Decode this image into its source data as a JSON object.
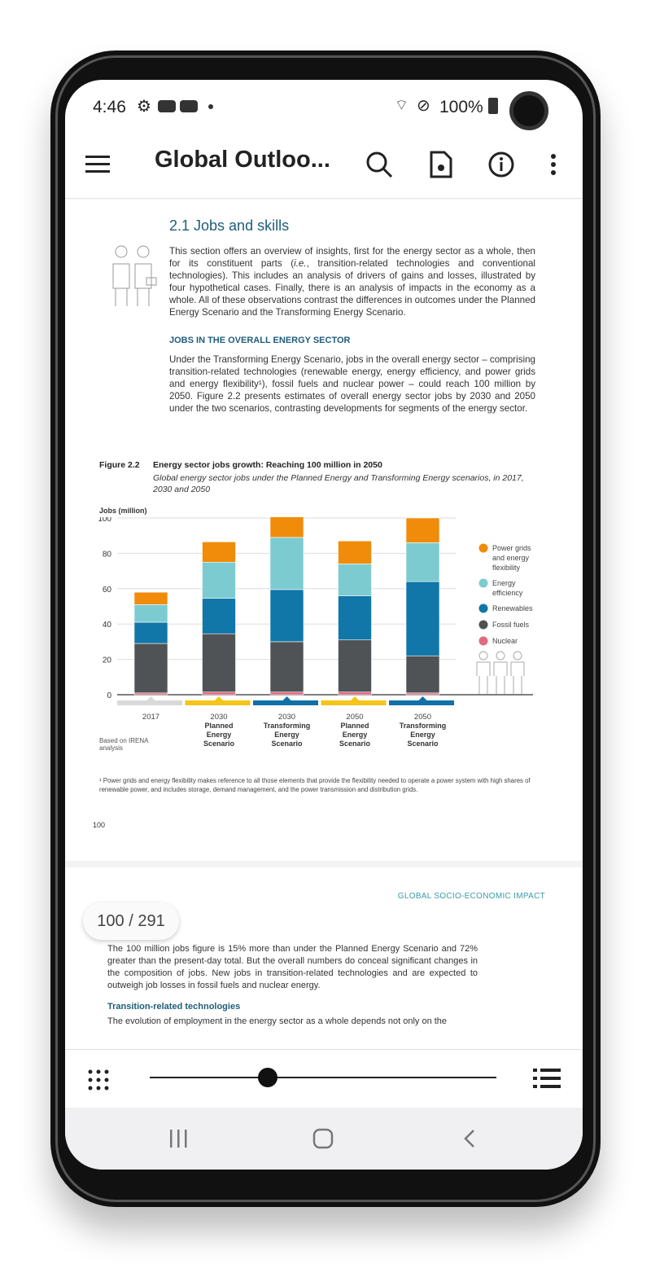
{
  "status_bar": {
    "time": "4:46",
    "battery": "100%",
    "icons": [
      "gear-icon",
      "youtube-icon",
      "youtube-icon",
      "dot-icon",
      "wifi-icon",
      "no-disturb-icon",
      "battery-icon"
    ]
  },
  "app_bar": {
    "title": "Global Outloo...",
    "icons": [
      "menu-icon",
      "search-icon",
      "document-settings-icon",
      "info-icon",
      "more-vert-icon"
    ]
  },
  "page1": {
    "section_title": "2.1  Jobs and skills",
    "intro_parts": [
      "This section offers an overview of insights, first for the energy sector as a whole, then for its constituent parts (",
      "i.e.",
      ", transition-related technologies and conventional technologies). This includes an analysis of drivers of gains and losses, illustrated by four hypothetical cases. Finally, there is an analysis of impacts in the economy as a whole. All of these observations  contrast the differences in outcomes under the Planned Energy Scenario and the Transforming Energy Scenario."
    ],
    "subheading": "JOBS IN THE OVERALL ENERGY SECTOR",
    "para2": "Under the Transforming Energy Scenario, jobs in the overall energy sector – comprising transition-related technologies (renewable energy, energy efficiency, and power grids and energy flexibility¹), fossil fuels and nuclear power – could reach 100 million by 2050. Figure 2.2 presents estimates of overall energy sector jobs by 2030 and 2050 under the two scenarios, contrasting developments for segments of the energy sector.",
    "figure_label": "Figure 2.2",
    "footnote": "¹ Power grids and energy flexibility makes reference to all those elements that provide the flexibility needed to operate a power system with high shares of renewable power, and includes storage, demand management, and the power transmission and distribution grids.",
    "page_number": "100"
  },
  "chart_data": {
    "type": "bar",
    "stacked": true,
    "title": "Energy sector jobs growth: Reaching 100 million in 2050",
    "subtitle": "Global energy sector jobs under the Planned Energy and Transforming Energy scenarios, in 2017, 2030 and 2050",
    "ylabel": "Jobs (million)",
    "ylim": [
      0,
      100
    ],
    "yticks": [
      0,
      20,
      40,
      60,
      80,
      100
    ],
    "grid": true,
    "legend": "right",
    "source": "Based on IRENA analysis",
    "categories": [
      {
        "year": "2017",
        "scenario": "",
        "marker_color": "#d9d9d9"
      },
      {
        "year": "2030",
        "scenario": "Planned Energy Scenario",
        "marker_color": "#f5c518"
      },
      {
        "year": "2030",
        "scenario": "Transforming Energy Scenario",
        "marker_color": "#1170a6"
      },
      {
        "year": "2050",
        "scenario": "Planned Energy Scenario",
        "marker_color": "#f5c518"
      },
      {
        "year": "2050",
        "scenario": "Transforming Energy Scenario",
        "marker_color": "#1170a6"
      }
    ],
    "series": [
      {
        "name": "Nuclear",
        "color": "#e26a80",
        "values": [
          1,
          1.5,
          1.5,
          1.5,
          1
        ]
      },
      {
        "name": "Fossil fuels",
        "color": "#4f5356",
        "values": [
          28,
          33,
          28.5,
          29.5,
          21
        ]
      },
      {
        "name": "Renewables",
        "color": "#1176a8",
        "values": [
          12,
          20,
          29.5,
          25,
          42
        ]
      },
      {
        "name": "Energy efficiency",
        "color": "#7ccbd0",
        "values": [
          10,
          20.5,
          29.5,
          18,
          22
        ]
      },
      {
        "name": "Power grids and energy flexibility",
        "color": "#f08c0a",
        "values": [
          7,
          11.5,
          12,
          13,
          14
        ]
      }
    ],
    "legend_order": [
      "Power grids and energy flexibility",
      "Energy efficiency",
      "Renewables",
      "Fossil fuels",
      "Nuclear"
    ]
  },
  "page2": {
    "running_header": "GLOBAL SOCIO-ECONOMIC IMPACT",
    "para": "The 100 million jobs figure is 15% more than under the Planned Energy Scenario and 72% greater than the present-day total. But the overall numbers do conceal significant changes in the composition of jobs. New jobs in transition-related technologies and are expected to outweigh job losses in fossil fuels and nuclear energy.",
    "subheading": "Transition-related technologies",
    "para_start": "The evolution of employment in the energy sector as a whole depends not only on the"
  },
  "page_indicator": "100 / 291",
  "slider": {
    "current_page": 100,
    "total_pages": 291
  },
  "bottom_bar": {
    "icons": [
      "grid-view-icon",
      "table-of-contents-icon"
    ]
  },
  "nav_bar": {
    "icons": [
      "recents-icon",
      "home-icon",
      "back-icon"
    ]
  }
}
